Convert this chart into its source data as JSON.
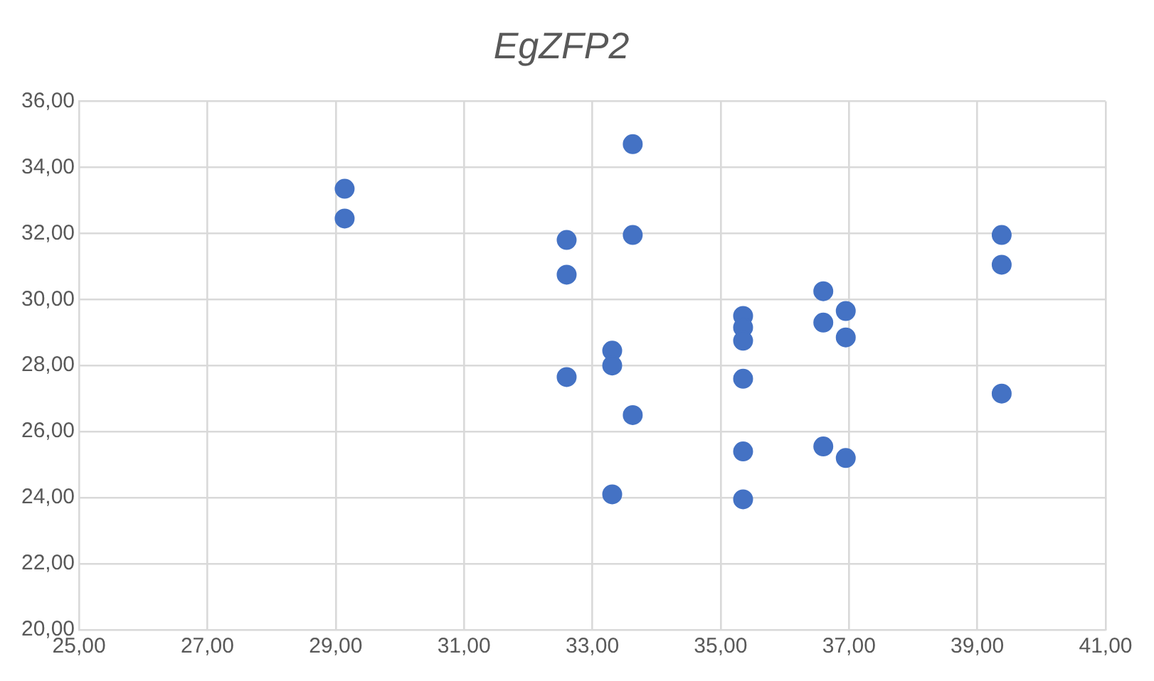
{
  "chart_data": {
    "type": "scatter",
    "title": "EgZFP2",
    "x": [
      29.14,
      29.14,
      32.6,
      32.6,
      32.6,
      33.63,
      33.63,
      33.63,
      33.31,
      33.31,
      33.31,
      35.35,
      35.35,
      35.35,
      35.35,
      35.35,
      35.35,
      36.6,
      36.6,
      36.6,
      36.95,
      36.95,
      36.95,
      39.38,
      39.38,
      39.38
    ],
    "values": [
      33.35,
      32.45,
      31.8,
      30.75,
      27.65,
      34.7,
      31.95,
      26.5,
      28.45,
      28,
      24.1,
      29.5,
      29.15,
      28.75,
      27.6,
      25.4,
      23.95,
      30.25,
      29.3,
      25.55,
      29.65,
      28.85,
      25.2,
      31.95,
      31.05,
      27.15
    ],
    "color": "#4472c4",
    "marker": "circle",
    "grid": true,
    "legend": false,
    "xlim": [
      25,
      41
    ],
    "xticks": [
      {
        "value": 25,
        "label": "25,00"
      },
      {
        "value": 27,
        "label": "27,00"
      },
      {
        "value": 29,
        "label": "29,00"
      },
      {
        "value": 31,
        "label": "31,00"
      },
      {
        "value": 33,
        "label": "33,00"
      },
      {
        "value": 35,
        "label": "35,00"
      },
      {
        "value": 37,
        "label": "37,00"
      },
      {
        "value": 39,
        "label": "39,00"
      },
      {
        "value": 41,
        "label": "41,00"
      }
    ],
    "ylim": [
      20,
      36
    ],
    "yticks": [
      {
        "value": 20,
        "label": "20,00"
      },
      {
        "value": 22,
        "label": "22,00"
      },
      {
        "value": 24,
        "label": "24,00"
      },
      {
        "value": 26,
        "label": "26,00"
      },
      {
        "value": 28,
        "label": "28,00"
      },
      {
        "value": 30,
        "label": "30,00"
      },
      {
        "value": 32,
        "label": "32,00"
      },
      {
        "value": 34,
        "label": "34,00"
      },
      {
        "value": 36,
        "label": "36,00"
      }
    ]
  }
}
